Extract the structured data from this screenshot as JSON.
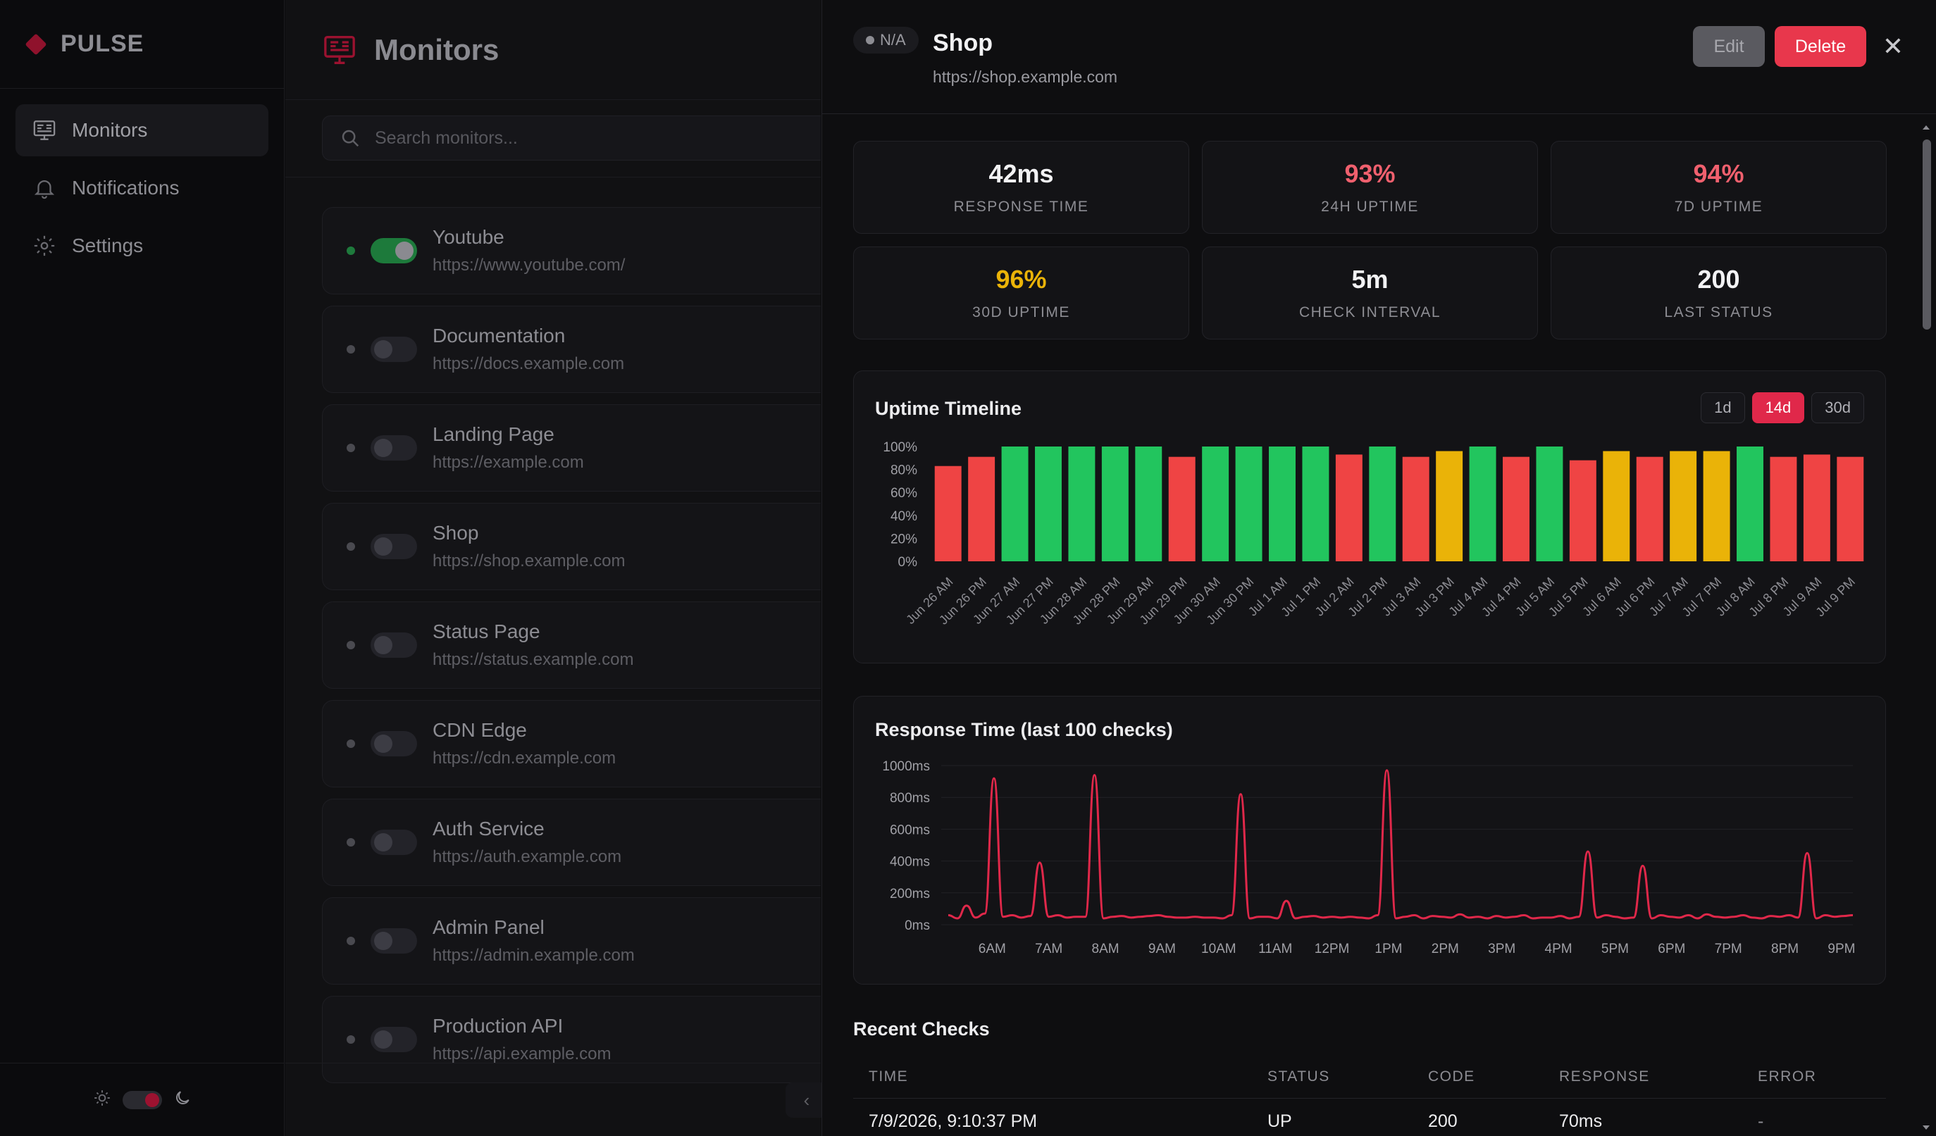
{
  "sidebar": {
    "brand": "PULSE",
    "items": [
      {
        "label": "Monitors",
        "icon": "monitor-icon",
        "active": true
      },
      {
        "label": "Notifications",
        "icon": "bell-icon",
        "active": false
      },
      {
        "label": "Settings",
        "icon": "gear-icon",
        "active": false
      }
    ],
    "theme_icons": [
      "sun-icon",
      "moon-icon"
    ]
  },
  "monitors_panel": {
    "title": "Monitors",
    "search_placeholder": "Search monitors...",
    "monitors": [
      {
        "name": "Youtube",
        "url": "https://www.youtube.com/",
        "enabled": true
      },
      {
        "name": "Documentation",
        "url": "https://docs.example.com",
        "enabled": false
      },
      {
        "name": "Landing Page",
        "url": "https://example.com",
        "enabled": false
      },
      {
        "name": "Shop",
        "url": "https://shop.example.com",
        "enabled": false
      },
      {
        "name": "Status Page",
        "url": "https://status.example.com",
        "enabled": false
      },
      {
        "name": "CDN Edge",
        "url": "https://cdn.example.com",
        "enabled": false
      },
      {
        "name": "Auth Service",
        "url": "https://auth.example.com",
        "enabled": false
      },
      {
        "name": "Admin Panel",
        "url": "https://admin.example.com",
        "enabled": false
      },
      {
        "name": "Production API",
        "url": "https://api.example.com",
        "enabled": false
      }
    ],
    "collapse_label": "‹"
  },
  "detail": {
    "status": "N/A",
    "title": "Shop",
    "url": "https://shop.example.com",
    "edit_label": "Edit",
    "delete_label": "Delete",
    "close_label": "✕",
    "stats": [
      {
        "value": "42ms",
        "label": "RESPONSE TIME",
        "color": "#f2f2f4"
      },
      {
        "value": "93%",
        "label": "24H UPTIME",
        "color": "#f0606e"
      },
      {
        "value": "94%",
        "label": "7D UPTIME",
        "color": "#f0606e"
      },
      {
        "value": "96%",
        "label": "30D UPTIME",
        "color": "#eab308"
      },
      {
        "value": "5m",
        "label": "CHECK INTERVAL",
        "color": "#f2f2f4"
      },
      {
        "value": "200",
        "label": "LAST STATUS",
        "color": "#f2f2f4"
      }
    ],
    "uptime_title": "Uptime Timeline",
    "ranges": [
      {
        "label": "1d",
        "active": false
      },
      {
        "label": "14d",
        "active": true
      },
      {
        "label": "30d",
        "active": false
      }
    ],
    "response_title": "Response Time (last 100 checks)",
    "checks_title": "Recent Checks",
    "checks_columns": [
      "TIME",
      "STATUS",
      "CODE",
      "RESPONSE",
      "ERROR"
    ],
    "checks_rows": [
      {
        "time": "7/9/2026, 9:10:37 PM",
        "status": "UP",
        "code": "200",
        "response": "70ms",
        "error": "-"
      }
    ]
  },
  "colors": {
    "accent": "#e0284a",
    "up": "#22c55e",
    "warn": "#eab308",
    "down": "#ef4444"
  },
  "chart_data": [
    {
      "type": "bar",
      "title": "Uptime Timeline",
      "categories": [
        "Jun 26 AM",
        "Jun 26 PM",
        "Jun 27 AM",
        "Jun 27 PM",
        "Jun 28 AM",
        "Jun 28 PM",
        "Jun 29 AM",
        "Jun 29 PM",
        "Jun 30 AM",
        "Jun 30 PM",
        "Jul 1 AM",
        "Jul 1 PM",
        "Jul 2 AM",
        "Jul 2 PM",
        "Jul 3 AM",
        "Jul 3 PM",
        "Jul 4 AM",
        "Jul 4 PM",
        "Jul 5 AM",
        "Jul 5 PM",
        "Jul 6 AM",
        "Jul 6 PM",
        "Jul 7 AM",
        "Jul 7 PM",
        "Jul 8 AM",
        "Jul 8 PM",
        "Jul 9 AM",
        "Jul 9 PM"
      ],
      "values": [
        83,
        91,
        100,
        100,
        100,
        100,
        100,
        91,
        100,
        100,
        100,
        100,
        93,
        100,
        91,
        96,
        100,
        91,
        100,
        88,
        96,
        91,
        96,
        96,
        100,
        91,
        93,
        91
      ],
      "ylim": [
        0,
        100
      ],
      "yticks": [
        "0%",
        "20%",
        "40%",
        "60%",
        "80%",
        "100%"
      ],
      "thresholds": {
        "green": 98,
        "yellow": 95
      },
      "grid": false,
      "legend": "none"
    },
    {
      "type": "line",
      "title": "Response Time (last 100 checks)",
      "ylim": [
        0,
        1000
      ],
      "yticks": [
        "0ms",
        "200ms",
        "400ms",
        "600ms",
        "800ms",
        "1000ms"
      ],
      "xticks": [
        "6AM",
        "7AM",
        "8AM",
        "9AM",
        "10AM",
        "11AM",
        "12PM",
        "1PM",
        "2PM",
        "3PM",
        "4PM",
        "5PM",
        "6PM",
        "7PM",
        "8PM",
        "9PM"
      ],
      "x_range_hours": [
        5.1,
        21.2
      ],
      "series": [
        {
          "values": [
            60,
            40,
            120,
            45,
            70,
            920,
            50,
            60,
            45,
            55,
            390,
            50,
            60,
            45,
            50,
            50,
            940,
            40,
            50,
            55,
            45,
            50,
            55,
            60,
            50,
            45,
            45,
            50,
            45,
            45,
            40,
            60,
            820,
            40,
            50,
            50,
            40,
            150,
            40,
            50,
            55,
            45,
            50,
            45,
            50,
            45,
            40,
            60,
            970,
            40,
            50,
            60,
            40,
            55,
            50,
            45,
            65,
            45,
            50,
            40,
            55,
            45,
            50,
            60,
            40,
            45,
            45,
            55,
            40,
            50,
            460,
            45,
            60,
            50,
            40,
            45,
            370,
            40,
            60,
            50,
            45,
            60,
            40,
            65,
            50,
            45,
            50,
            60,
            45,
            40,
            55,
            50,
            60,
            45,
            450,
            40,
            60,
            50,
            55,
            60
          ]
        }
      ],
      "grid": true,
      "legend": "none"
    }
  ]
}
